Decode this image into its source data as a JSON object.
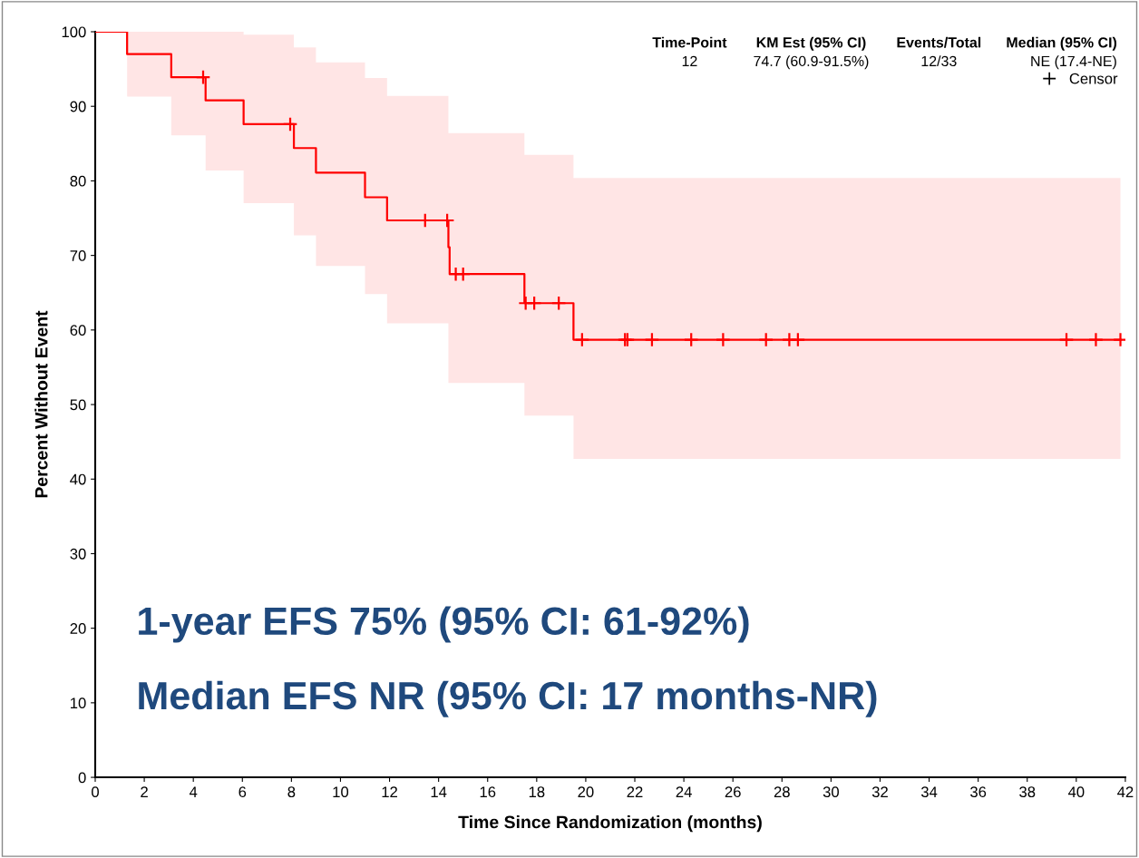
{
  "chart_data": {
    "type": "step",
    "xlabel": "Time Since Randomization (months)",
    "ylabel": "Percent Without Event",
    "xlim": [
      0,
      42
    ],
    "xticks": [
      0,
      2,
      4,
      6,
      8,
      10,
      12,
      14,
      16,
      18,
      20,
      22,
      24,
      26,
      28,
      30,
      32,
      34,
      36,
      38,
      40,
      42
    ],
    "ylim": [
      0,
      100
    ],
    "yticks": [
      0,
      10,
      20,
      30,
      40,
      50,
      60,
      70,
      80,
      90,
      100
    ],
    "grid": false,
    "legend": "top right",
    "series": [
      {
        "color": "#ff0000",
        "x": [
          0,
          1.3,
          3.1,
          4.5,
          6.05,
          8.1,
          9.0,
          11.0,
          11.9,
          14.4,
          14.45,
          17.5,
          19.5,
          41.8
        ],
        "values": [
          100,
          97.0,
          93.9,
          90.8,
          87.6,
          84.4,
          81.1,
          77.8,
          74.7,
          71.1,
          67.5,
          63.6,
          58.7,
          58.7
        ],
        "lower": [
          100,
          91.3,
          86.1,
          81.4,
          77.0,
          72.7,
          68.6,
          64.8,
          60.9,
          52.9,
          52.9,
          48.5,
          42.7,
          42.7
        ],
        "upper": [
          100,
          100,
          100,
          100,
          99.6,
          97.9,
          95.9,
          93.8,
          91.4,
          86.4,
          86.4,
          83.5,
          80.4,
          80.4
        ]
      },
      {
        "type": "scatter",
        "name": "Censor",
        "color": "#ff0000",
        "marker": "cross",
        "x": [
          4.4,
          7.95,
          13.45,
          14.35,
          14.7,
          15.0,
          17.55,
          17.9,
          18.9,
          19.85,
          21.6,
          21.7,
          22.7,
          24.3,
          25.6,
          27.35,
          28.3,
          28.65,
          39.6,
          40.8,
          41.8
        ],
        "values": [
          93.9,
          87.6,
          74.7,
          74.7,
          67.5,
          67.5,
          63.6,
          63.6,
          63.6,
          58.7,
          58.7,
          58.7,
          58.7,
          58.7,
          58.7,
          58.7,
          58.7,
          58.7,
          58.7,
          58.7,
          58.7
        ]
      }
    ],
    "annotations": [
      "Time-Point",
      "KM Est (95% CI)",
      "Events/Total",
      "Median (95% CI)",
      "12",
      "74.7 (60.9-91.5%)",
      "12/33",
      "NE (17.4-NE)",
      "1-year EFS 75% (95% CI: 61-92%)",
      "Median EFS NR (95% CI: 17 months-NR)"
    ]
  }
}
